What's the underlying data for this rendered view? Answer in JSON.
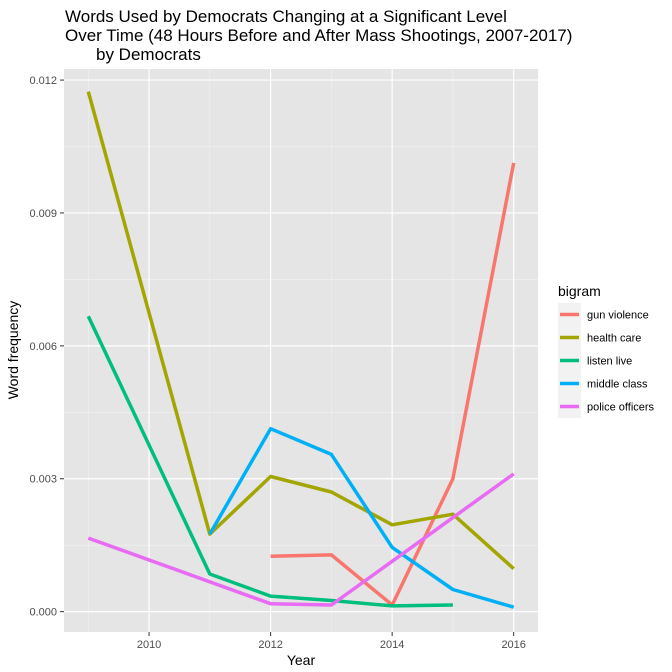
{
  "chart_data": {
    "type": "line",
    "title_lines": [
      "Words Used by Democrats Changing at a Significant Level",
      "Over Time (48 Hours Before and After Mass Shootings, 2007-2017)",
      "by Democrats"
    ],
    "xlabel": "Year",
    "ylabel": "Word frequency",
    "xlim": [
      2008.6,
      2016.4
    ],
    "ylim": [
      -0.00046,
      0.01225
    ],
    "x_ticks": [
      2010,
      2012,
      2014,
      2016
    ],
    "x_tick_labels": [
      "2010",
      "2012",
      "2014",
      "2016"
    ],
    "y_ticks": [
      0.0,
      0.003,
      0.006,
      0.009,
      0.012
    ],
    "y_tick_labels": [
      "0.000",
      "0.003",
      "0.006",
      "0.009",
      "0.012"
    ],
    "grid": true,
    "legend_position": "right",
    "legend_title": "bigram",
    "background": "#e5e5e5",
    "series": [
      {
        "name": "gun violence",
        "color": "#F8766D",
        "points": [
          [
            2012,
            0.00125
          ],
          [
            2013,
            0.00128
          ],
          [
            2014,
            0.00015
          ],
          [
            2015,
            0.003
          ],
          [
            2016,
            0.01013
          ]
        ]
      },
      {
        "name": "health care",
        "color": "#A3A500",
        "points": [
          [
            2009,
            0.01174
          ],
          [
            2011,
            0.00175
          ],
          [
            2012,
            0.00305
          ],
          [
            2013,
            0.0027
          ],
          [
            2014,
            0.00196
          ],
          [
            2015,
            0.0022
          ],
          [
            2016,
            0.00097
          ]
        ]
      },
      {
        "name": "listen live",
        "color": "#00BF7D",
        "points": [
          [
            2009,
            0.00667
          ],
          [
            2011,
            0.00085
          ],
          [
            2012,
            0.00035
          ],
          [
            2013,
            0.00025
          ],
          [
            2014,
            0.00013
          ],
          [
            2015,
            0.00015
          ]
        ]
      },
      {
        "name": "middle class",
        "color": "#00B0F6",
        "points": [
          [
            2011,
            0.00175
          ],
          [
            2012,
            0.00413
          ],
          [
            2013,
            0.00355
          ],
          [
            2014,
            0.00145
          ],
          [
            2015,
            0.0005
          ],
          [
            2016,
            0.0001
          ]
        ]
      },
      {
        "name": "police officers",
        "color": "#E76BF3",
        "points": [
          [
            2009,
            0.00166
          ],
          [
            2012,
            0.00018
          ],
          [
            2013,
            0.00015
          ],
          [
            2016,
            0.00311
          ]
        ]
      }
    ]
  }
}
